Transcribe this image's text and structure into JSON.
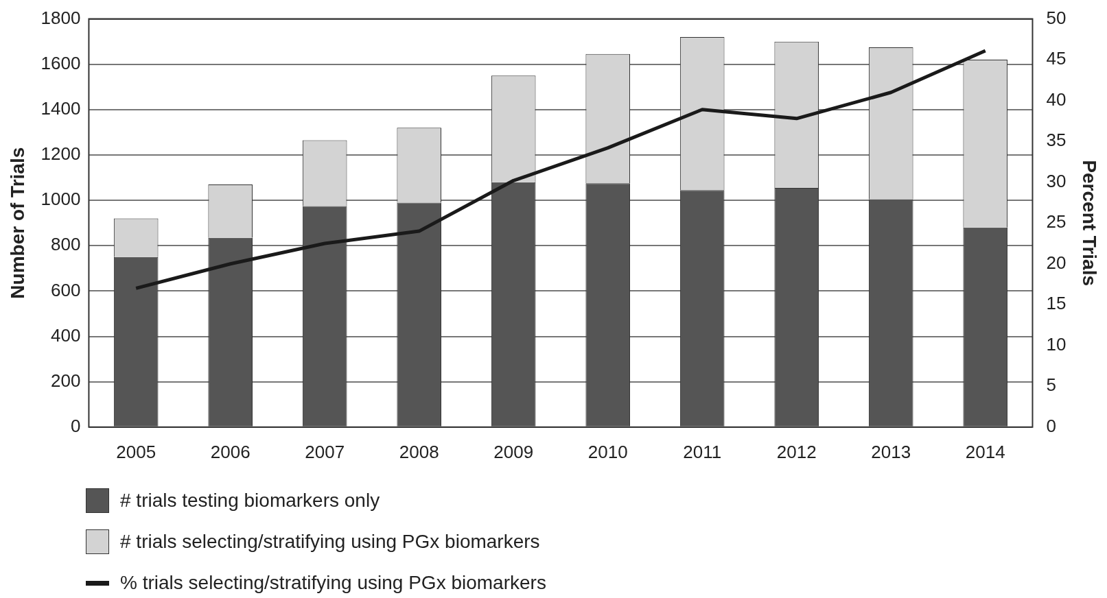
{
  "chart_data": {
    "type": "bar",
    "ylabel": "Number of Trials",
    "y2label": "Percent Trials",
    "categories": [
      "2005",
      "2006",
      "2007",
      "2008",
      "2009",
      "2010",
      "2011",
      "2012",
      "2013",
      "2014"
    ],
    "stacked": true,
    "series": [
      {
        "name": "# trials testing biomarkers only",
        "color": "#555555",
        "values": [
          750,
          835,
          975,
          990,
          1080,
          1075,
          1045,
          1055,
          1005,
          880
        ]
      },
      {
        "name": "# trials selecting/stratifying using PGx biomarkers",
        "color": "#d3d3d3",
        "values": [
          170,
          235,
          290,
          330,
          470,
          570,
          675,
          645,
          670,
          740
        ]
      },
      {
        "name": "% trials selecting/stratifying using PGx biomarkers",
        "type": "line",
        "axis": "y2",
        "color": "#1a1a1a",
        "values": [
          17.0,
          20.0,
          22.5,
          24.0,
          30.2,
          34.2,
          38.9,
          37.8,
          41.0,
          46.1
        ]
      }
    ],
    "ylim": [
      0,
      1800
    ],
    "yticks": [
      0,
      200,
      400,
      600,
      800,
      1000,
      1200,
      1400,
      1600,
      1800
    ],
    "y2lim": [
      0,
      50
    ],
    "y2ticks": [
      0,
      5,
      10,
      15,
      20,
      25,
      30,
      35,
      40,
      45,
      50
    ],
    "grid": "y",
    "legend": "bottom left",
    "marker": "none",
    "line_style": "solid"
  }
}
